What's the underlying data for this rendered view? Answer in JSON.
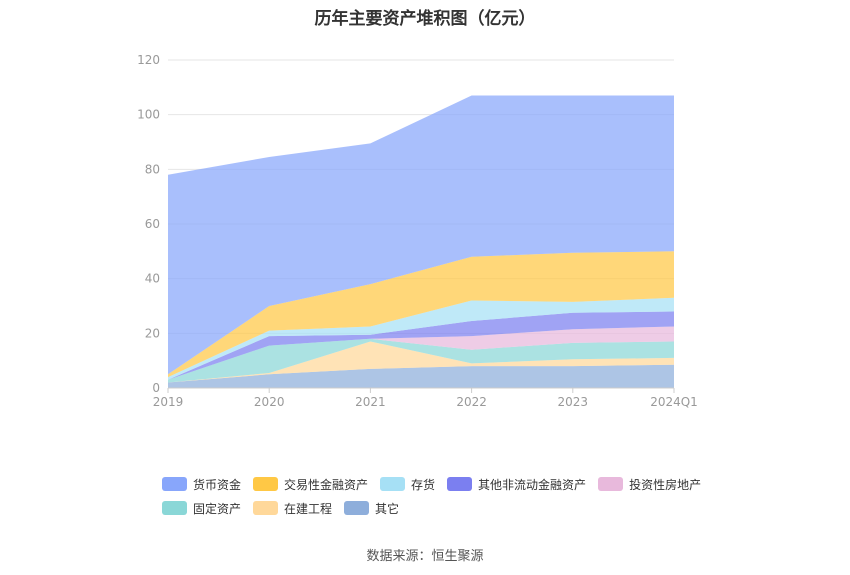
{
  "chart_data": {
    "type": "area",
    "stacked": true,
    "title": "历年主要资产堆积图（亿元）",
    "categories": [
      "2019",
      "2020",
      "2021",
      "2022",
      "2023",
      "2024Q1"
    ],
    "ylim": [
      0,
      120
    ],
    "yticks": [
      0,
      20,
      40,
      60,
      80,
      100,
      120
    ],
    "grid": true,
    "legend_position": "bottom",
    "series": [
      {
        "name": "其它",
        "color": "#8eaedb",
        "values": [
          2,
          5,
          7,
          8,
          8,
          8.5
        ]
      },
      {
        "name": "在建工程",
        "color": "#ffd89a",
        "values": [
          0,
          0.5,
          10,
          1,
          2.5,
          2.5
        ]
      },
      {
        "name": "固定资产",
        "color": "#8ad7d7",
        "values": [
          1,
          10,
          1,
          5,
          6,
          6
        ]
      },
      {
        "name": "投资性房地产",
        "color": "#e8b9dc",
        "values": [
          0,
          0,
          0,
          5,
          5,
          5.5
        ]
      },
      {
        "name": "其他非流动金融资产",
        "color": "#7b7ff0",
        "values": [
          0,
          3.5,
          1.5,
          5.5,
          6,
          5.5
        ]
      },
      {
        "name": "存货",
        "color": "#a6e0f5",
        "values": [
          1,
          2,
          3,
          7.5,
          4,
          5
        ]
      },
      {
        "name": "交易性金融资产",
        "color": "#ffc845",
        "values": [
          1,
          9,
          15.5,
          16,
          18,
          17
        ]
      },
      {
        "name": "货币资金",
        "color": "#88a6fb",
        "values": [
          73,
          54.5,
          51.5,
          59,
          57.5,
          57
        ]
      }
    ],
    "legend_order": [
      "货币资金",
      "交易性金融资产",
      "存货",
      "其他非流动金融资产",
      "投资性房地产",
      "固定资产",
      "在建工程",
      "其它"
    ]
  },
  "source_text": "数据来源：恒生聚源"
}
